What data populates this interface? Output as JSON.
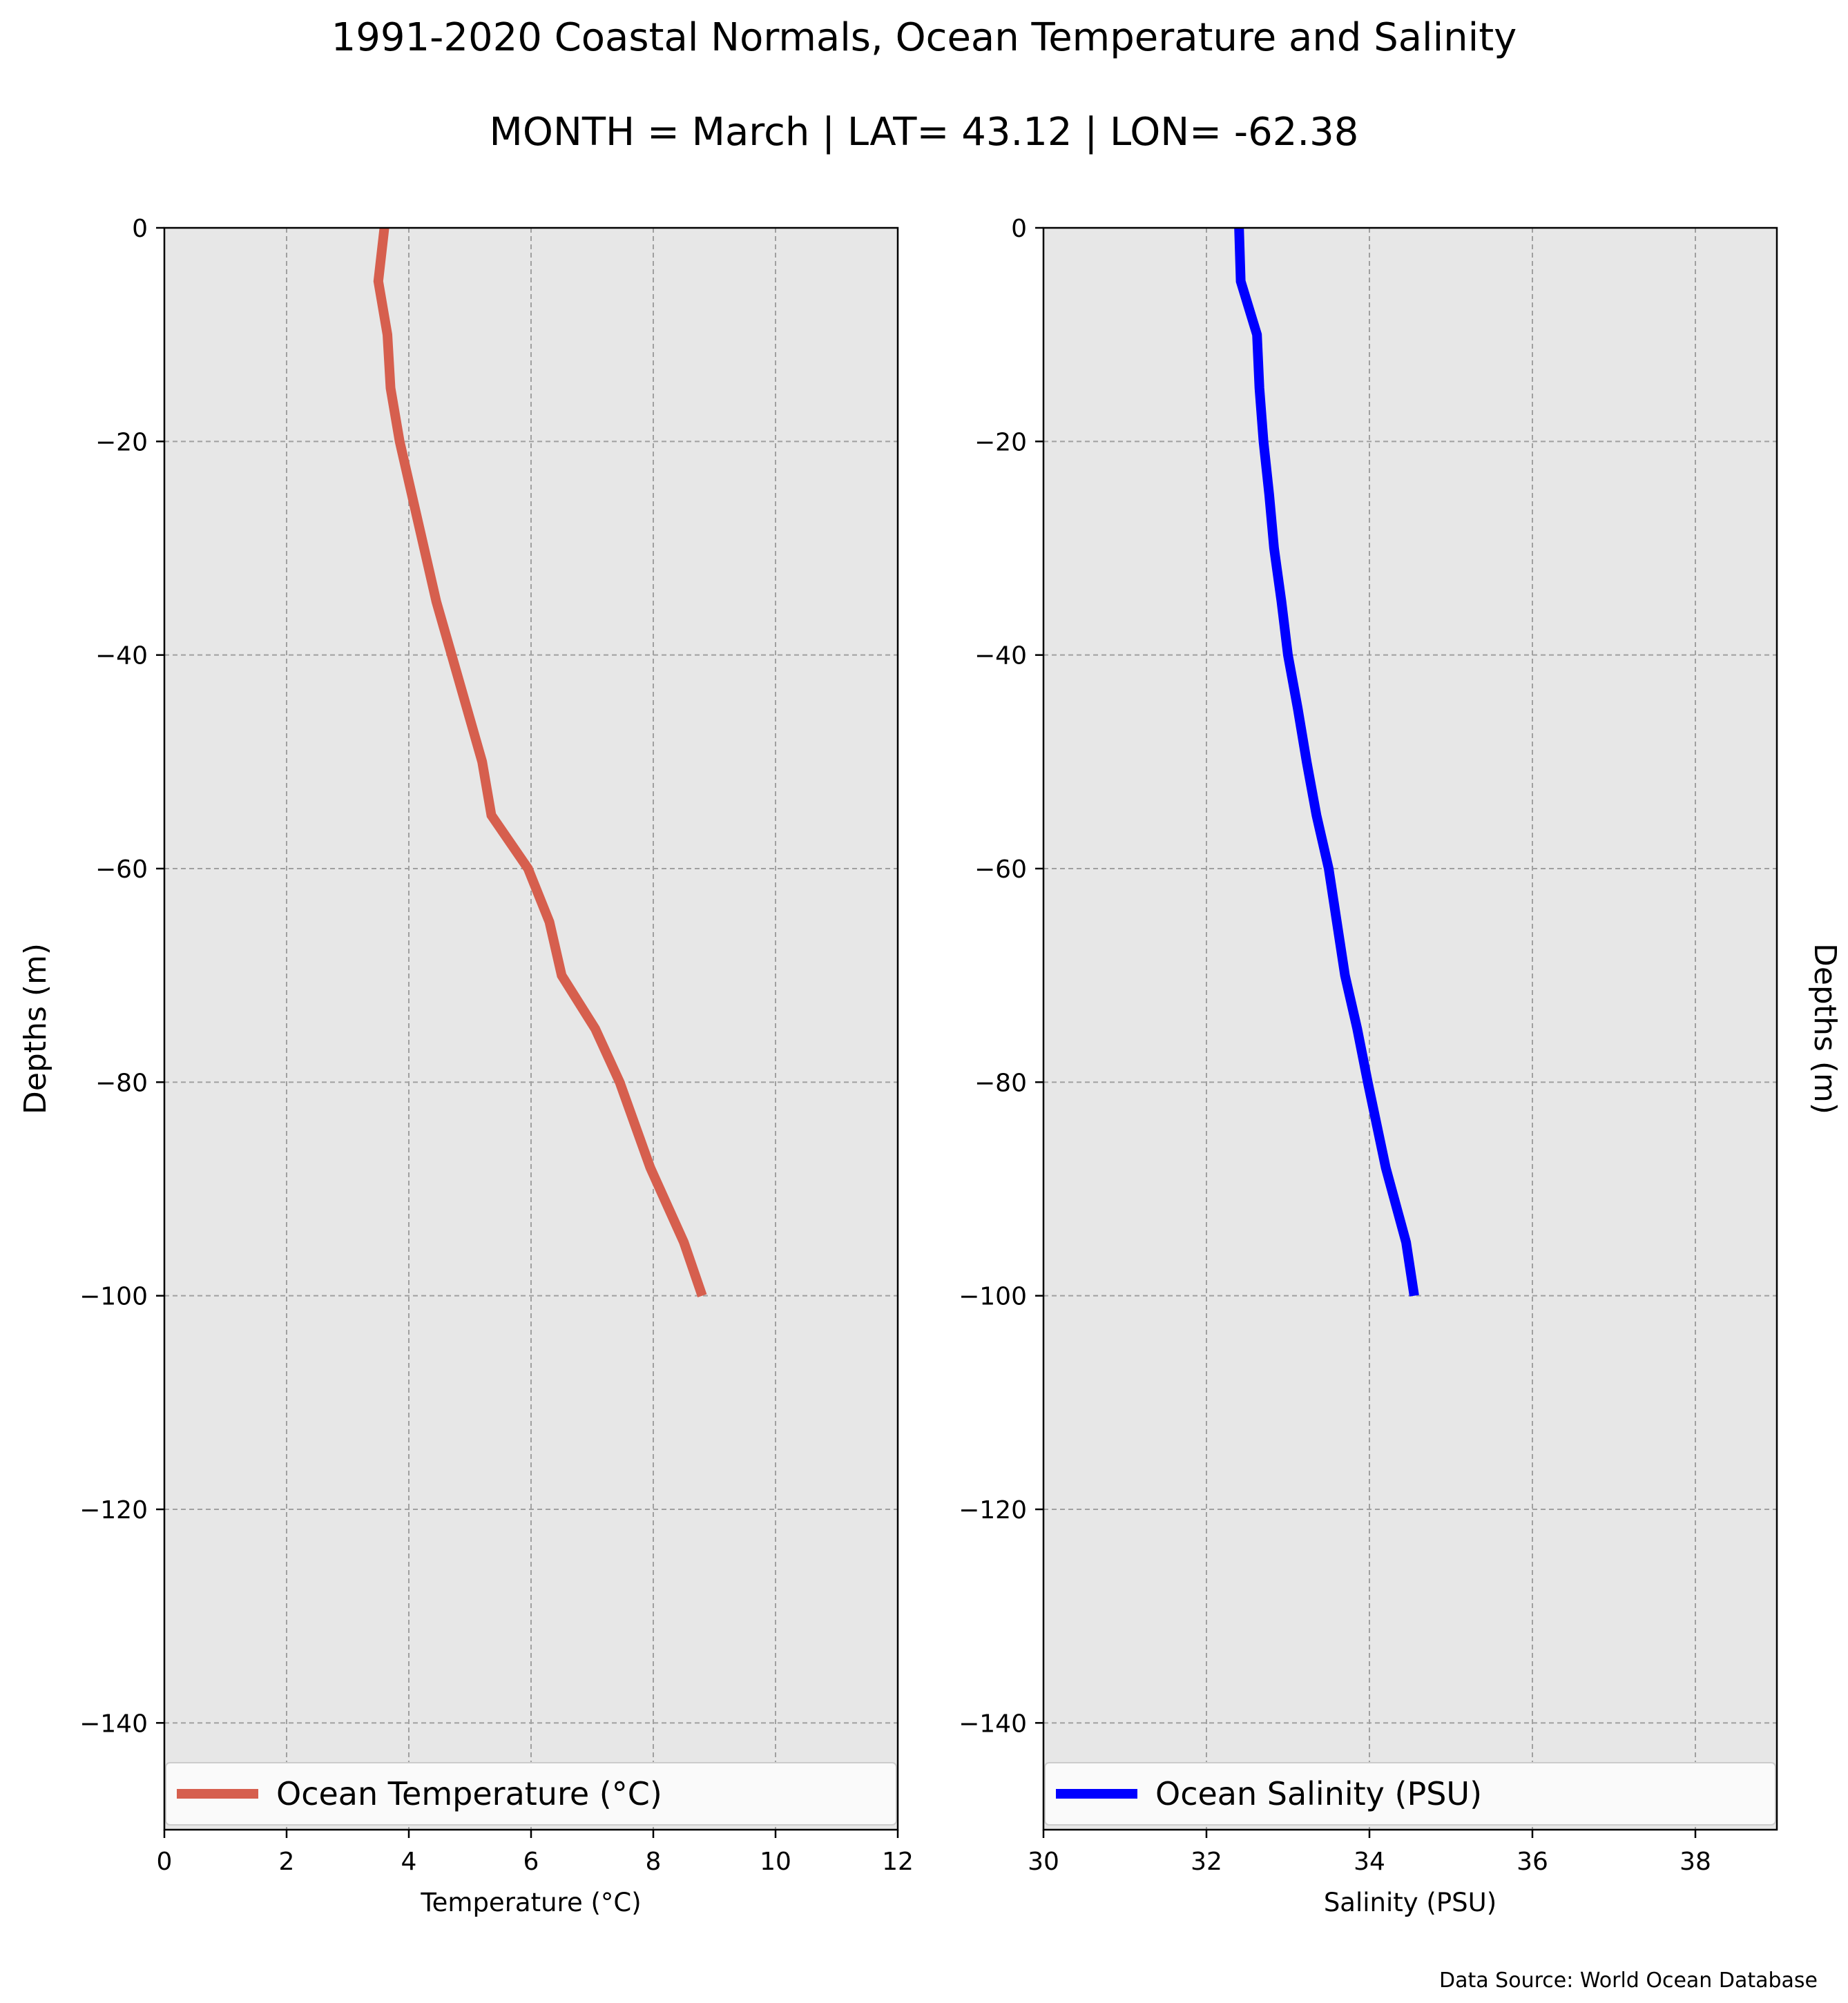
{
  "figure": {
    "title": "1991-2020 Coastal Normals, Ocean Temperature and Salinity",
    "subtitle": "MONTH = March | LAT= 43.12 | LON= -62.38",
    "source": "Data Source: World Ocean Database"
  },
  "chart_data": [
    {
      "type": "line",
      "xlabel": "Temperature ($^\\circ$C)",
      "xlabel_text": "Temperature (°C)",
      "ylabel": "Depths (m)",
      "xlim": [
        0,
        12
      ],
      "ylim": [
        -150,
        0
      ],
      "xticks": [
        0,
        2,
        4,
        6,
        8,
        10,
        12
      ],
      "yticks": [
        0,
        -20,
        -40,
        -60,
        -80,
        -100,
        -120,
        -140
      ],
      "ytick_labels": [
        "0",
        "−20",
        "−40",
        "−60",
        "−80",
        "−100",
        "−120",
        "−140"
      ],
      "grid": true,
      "legend": "lower center",
      "series": [
        {
          "name": "Ocean Temperature (°C)",
          "color": "#d65f4e",
          "x": [
            3.6,
            3.5,
            3.65,
            3.7,
            3.85,
            4.05,
            4.25,
            4.45,
            4.7,
            4.95,
            5.2,
            5.35,
            5.95,
            6.3,
            6.5,
            7.05,
            7.45,
            7.95,
            8.5,
            8.8
          ],
          "y": [
            0,
            -5,
            -10,
            -15,
            -20,
            -25,
            -30,
            -35,
            -40,
            -45,
            -50,
            -55,
            -60,
            -65,
            -70,
            -75,
            -80,
            -88,
            -95,
            -100
          ]
        }
      ]
    },
    {
      "type": "line",
      "xlabel": "Salinity (PSU)",
      "ylabel": "Depths (m)",
      "xlim": [
        30,
        39
      ],
      "ylim": [
        -150,
        0
      ],
      "xticks": [
        30,
        32,
        34,
        36,
        38
      ],
      "yticks": [
        0,
        -20,
        -40,
        -60,
        -80,
        -100,
        -120,
        -140
      ],
      "ytick_labels": [
        "0",
        "−20",
        "−40",
        "−60",
        "−80",
        "−100",
        "−120",
        "−140"
      ],
      "grid": true,
      "legend": "lower center",
      "ylabel_position": "right",
      "series": [
        {
          "name": "Ocean Salinity (PSU)",
          "color": "#0000ff",
          "x": [
            32.4,
            32.42,
            32.62,
            32.65,
            32.7,
            32.77,
            32.83,
            32.92,
            33.0,
            33.12,
            33.23,
            33.35,
            33.5,
            33.6,
            33.7,
            33.85,
            33.98,
            34.2,
            34.45,
            34.55
          ],
          "y": [
            0,
            -5,
            -10,
            -15,
            -20,
            -25,
            -30,
            -35,
            -40,
            -45,
            -50,
            -55,
            -60,
            -65,
            -70,
            -75,
            -80,
            -88,
            -95,
            -100
          ]
        }
      ]
    }
  ]
}
